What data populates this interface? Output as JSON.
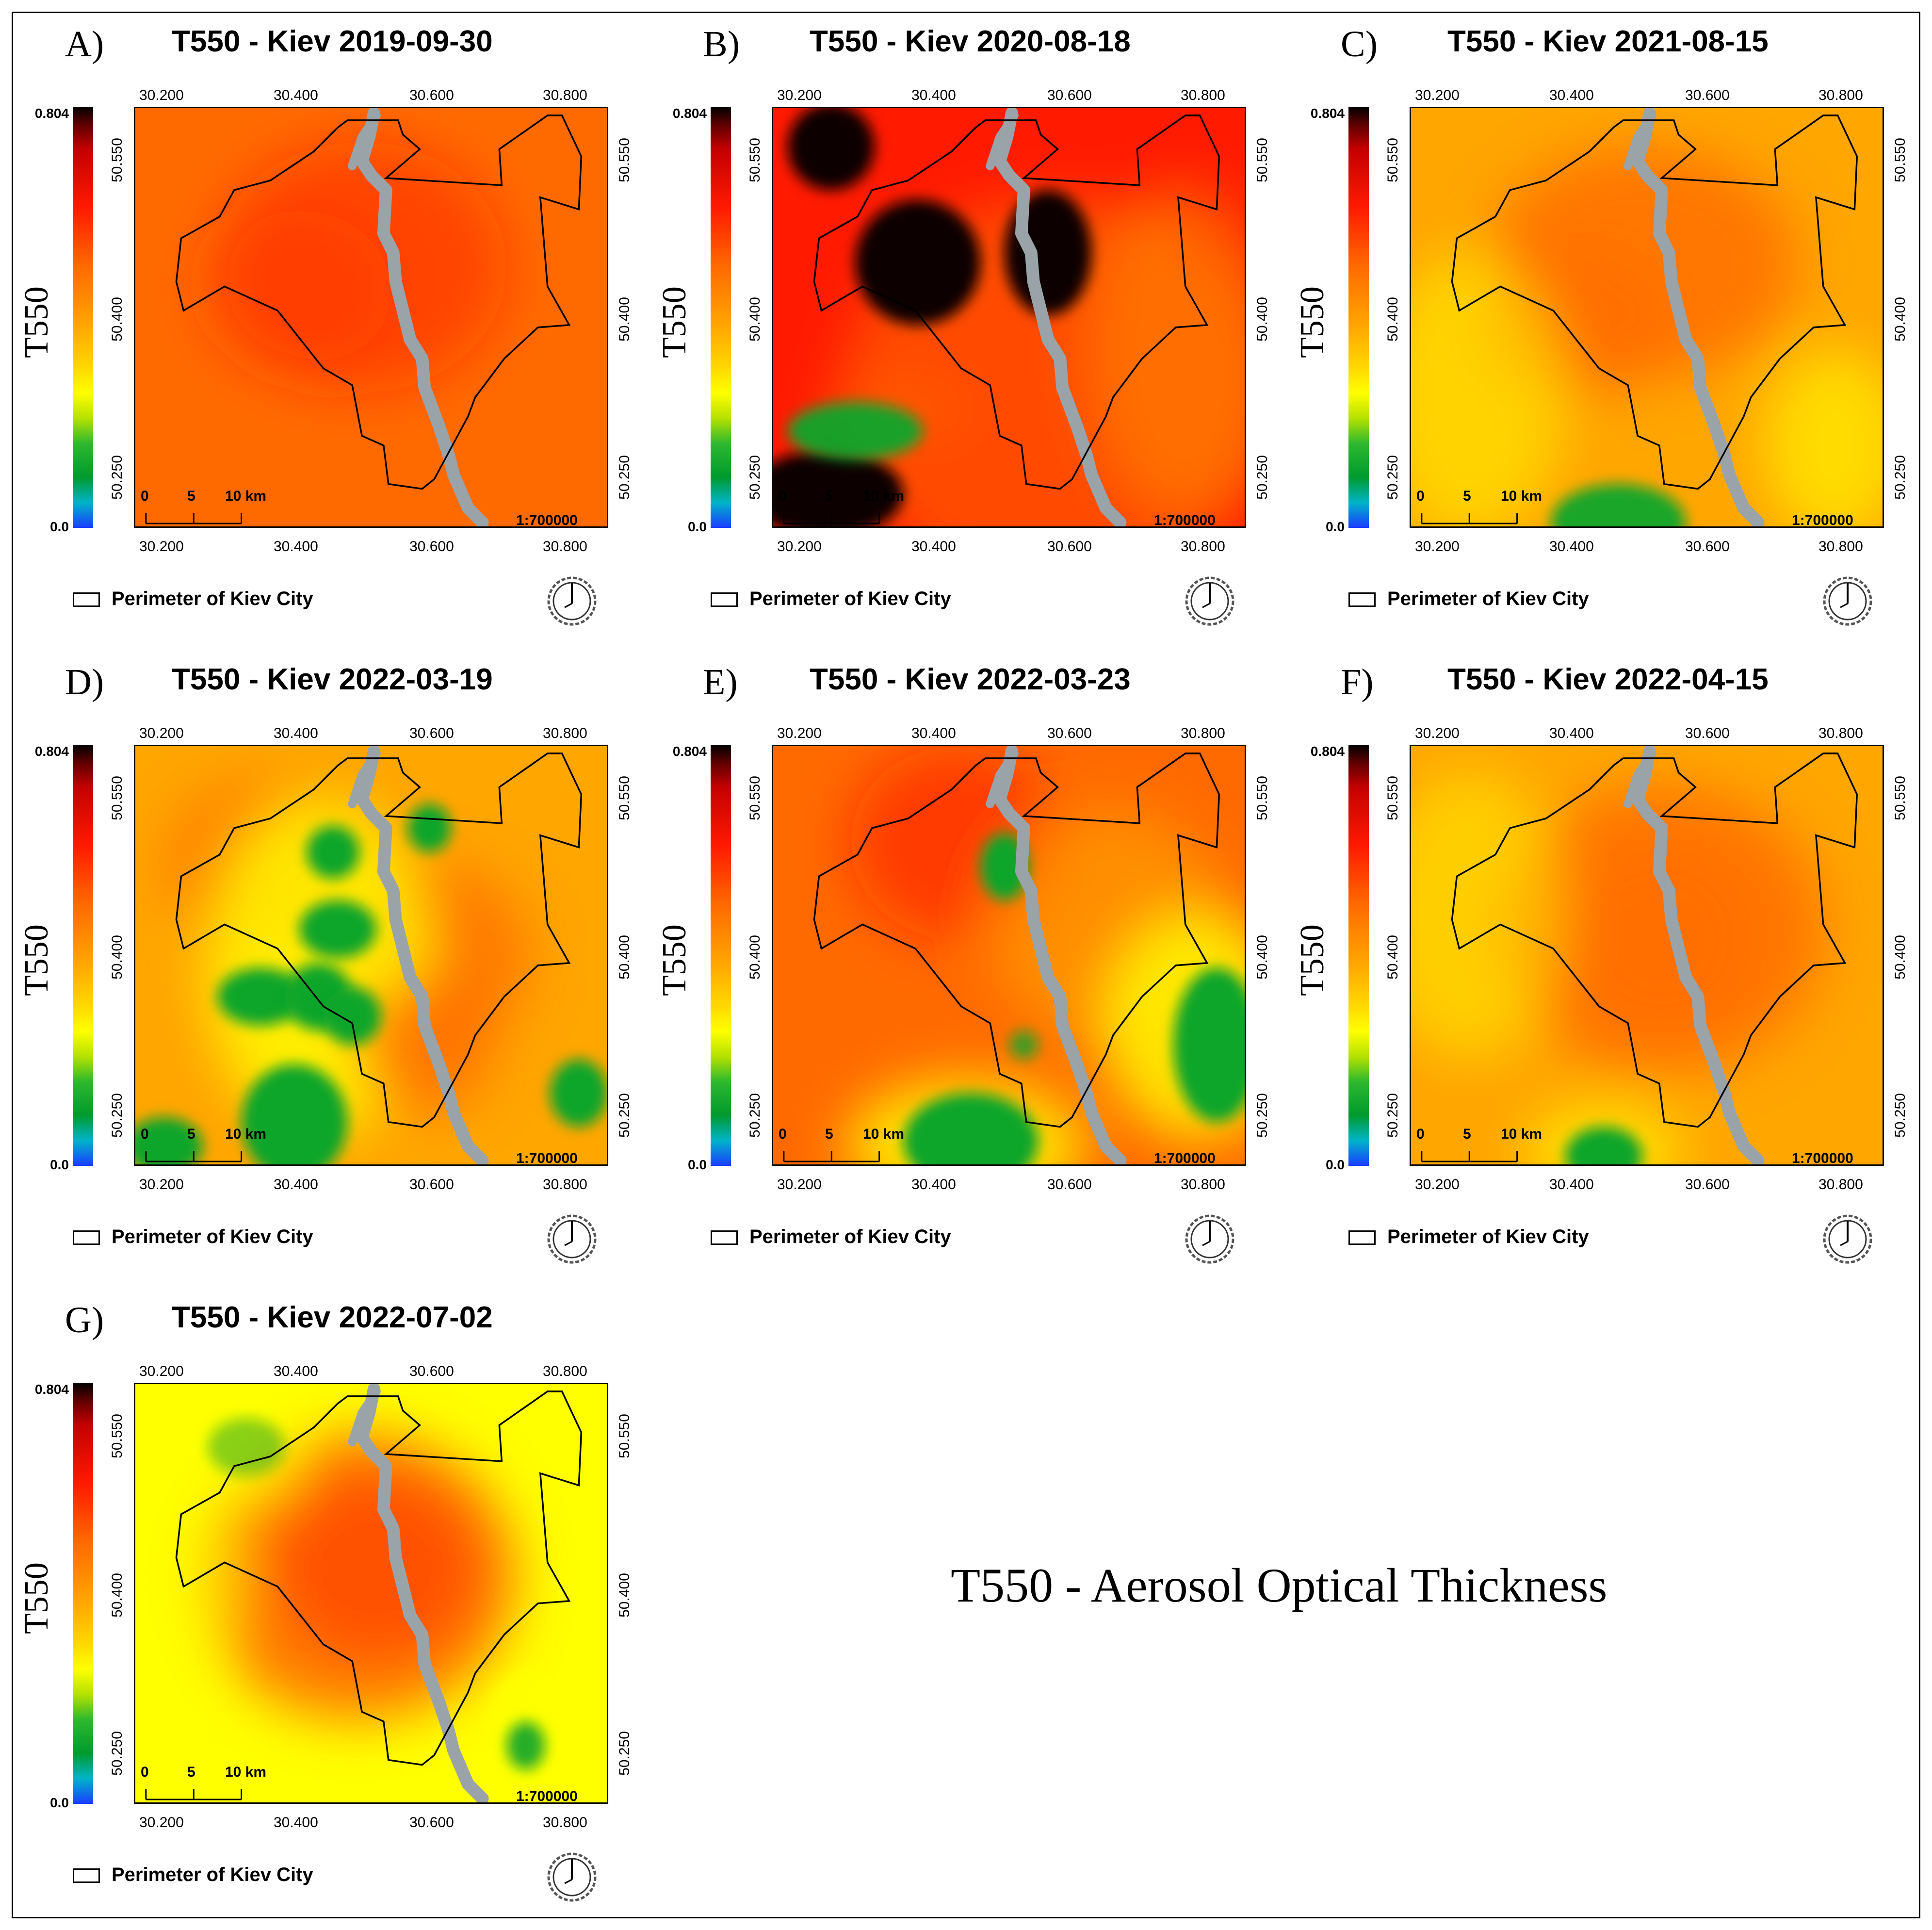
{
  "figure_title": "T550 - Aerosol Optical Thickness",
  "colorbar": {
    "label": "T550",
    "max": "0.804",
    "min": "0.0"
  },
  "axes": {
    "lon_ticks": [
      "30.200",
      "30.400",
      "30.600",
      "30.800"
    ],
    "lat_ticks": [
      "50.550",
      "50.400",
      "50.250"
    ]
  },
  "scale": {
    "labels": [
      "0",
      "5",
      "10 km"
    ],
    "ratio": "1:700000"
  },
  "legend_label": "Perimeter of Kiev City",
  "colors": {
    "red": "#ff1a00",
    "orange": "#ff6a00",
    "light_orange": "#ffa600",
    "yellow": "#ffff00",
    "green": "#11a52c",
    "black": "#0a0000",
    "river_gray": "#9aa3a8"
  },
  "panels": [
    {
      "letter": "A)",
      "title": "T550 - Kiev 2019-09-30"
    },
    {
      "letter": "B)",
      "title": "T550 - Kiev 2020-08-18"
    },
    {
      "letter": "C)",
      "title": "T550 - Kiev 2021-08-15"
    },
    {
      "letter": "D)",
      "title": "T550 - Kiev 2022-03-19"
    },
    {
      "letter": "E)",
      "title": "T550 - Kiev 2022-03-23"
    },
    {
      "letter": "F)",
      "title": "T550 - Kiev 2022-04-15"
    },
    {
      "letter": "G)",
      "title": "T550 - Kiev 2022-07-02"
    }
  ]
}
